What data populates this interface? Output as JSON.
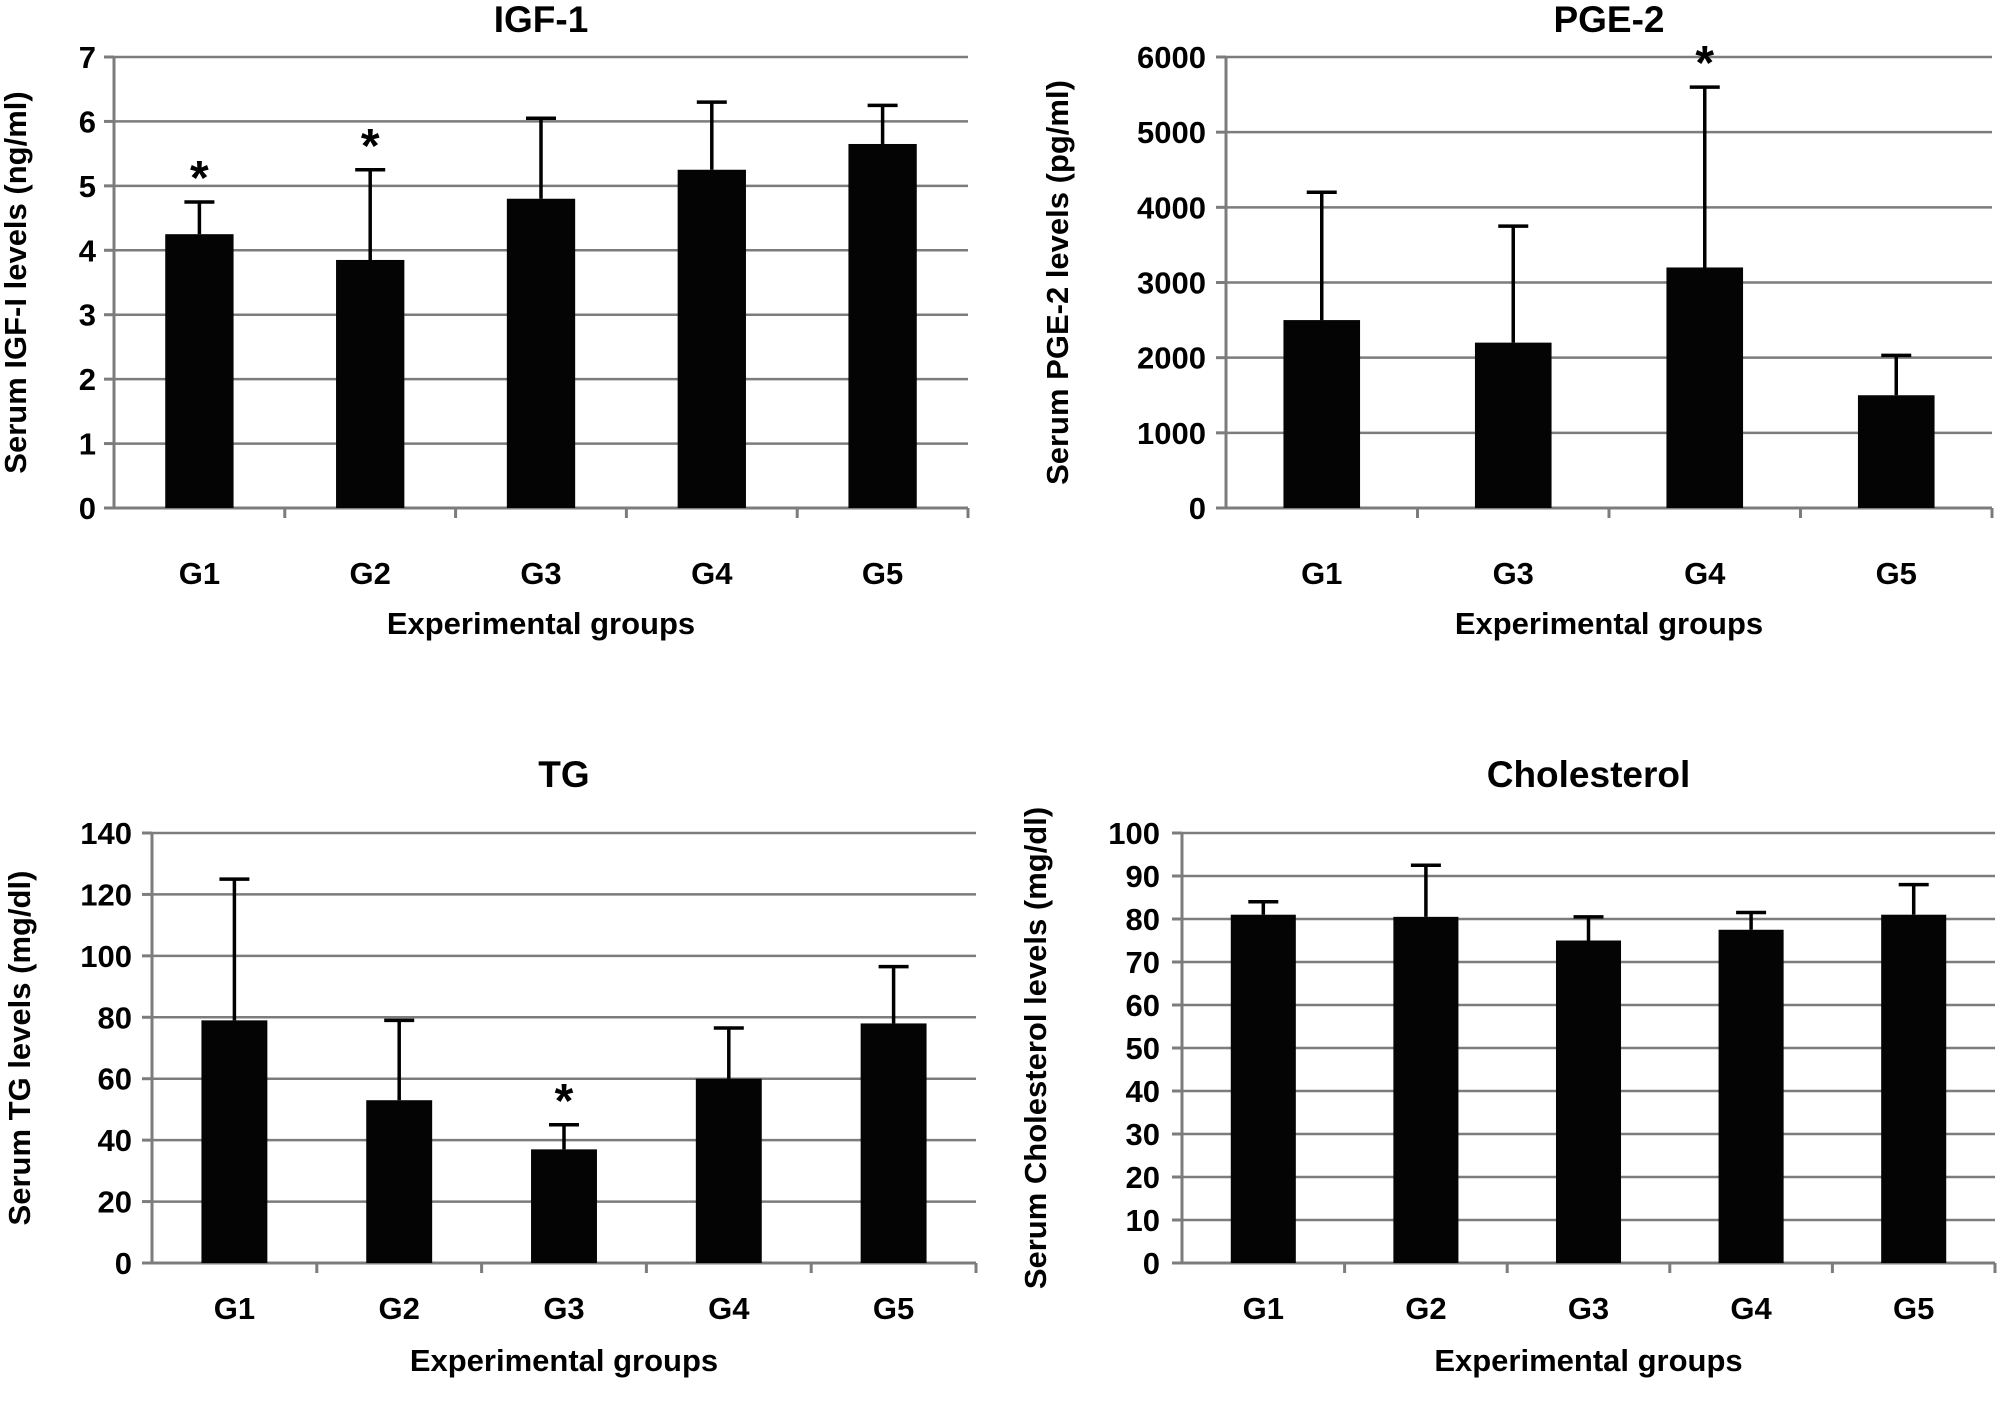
{
  "figure": {
    "background": "#ffffff",
    "text_color": "#000000",
    "grid_color": "#7c7c7c",
    "axis_color": "#7c7c7c",
    "bar_color": "#040404",
    "error_bar_color": "#000000"
  },
  "chart_data": [
    {
      "type": "bar",
      "title": "IGF-1",
      "ylabel": "Serum IGF-I levels (ng/ml)",
      "xlabel": "Experimental groups",
      "categories": [
        "G1",
        "G2",
        "G3",
        "G4",
        "G5"
      ],
      "values": [
        4.25,
        3.85,
        4.8,
        5.25,
        5.65
      ],
      "error_upper": [
        0.5,
        1.4,
        1.25,
        1.05,
        0.6
      ],
      "significance": [
        "*",
        "*",
        "",
        "",
        ""
      ],
      "ylim": [
        0,
        7
      ],
      "ytick_step": 1,
      "grid": true,
      "legend": "none"
    },
    {
      "type": "bar",
      "title": "PGE-2",
      "ylabel": "Serum PGE-2 levels (pg/ml)",
      "xlabel": "Experimental groups",
      "categories": [
        "G1",
        "G3",
        "G4",
        "G5"
      ],
      "values": [
        2500,
        2200,
        3200,
        1500
      ],
      "error_upper": [
        1700,
        1550,
        2400,
        530
      ],
      "significance": [
        "",
        "",
        "*",
        ""
      ],
      "ylim": [
        0,
        6000
      ],
      "ytick_step": 1000,
      "grid": true,
      "legend": "none"
    },
    {
      "type": "bar",
      "title": "TG",
      "ylabel": "Serum TG levels (mg/dl)",
      "xlabel": "Experimental groups",
      "categories": [
        "G1",
        "G2",
        "G3",
        "G4",
        "G5"
      ],
      "values": [
        79,
        53,
        37,
        60,
        78
      ],
      "error_upper": [
        46,
        26,
        8,
        16.5,
        18.5
      ],
      "significance": [
        "",
        "",
        "*",
        "",
        ""
      ],
      "ylim": [
        0,
        140
      ],
      "ytick_step": 20,
      "grid": true,
      "legend": "none"
    },
    {
      "type": "bar",
      "title": "Cholesterol",
      "ylabel": "Serum Cholesterol levels (mg/dl)",
      "xlabel": "Experimental groups",
      "categories": [
        "G1",
        "G2",
        "G3",
        "G4",
        "G5"
      ],
      "values": [
        81,
        80.5,
        75,
        77.5,
        81
      ],
      "error_upper": [
        3,
        12,
        5.5,
        4,
        7
      ],
      "significance": [
        "",
        "",
        "",
        "",
        ""
      ],
      "ylim": [
        0,
        100
      ],
      "ytick_step": 10,
      "grid": true,
      "legend": "none"
    }
  ]
}
